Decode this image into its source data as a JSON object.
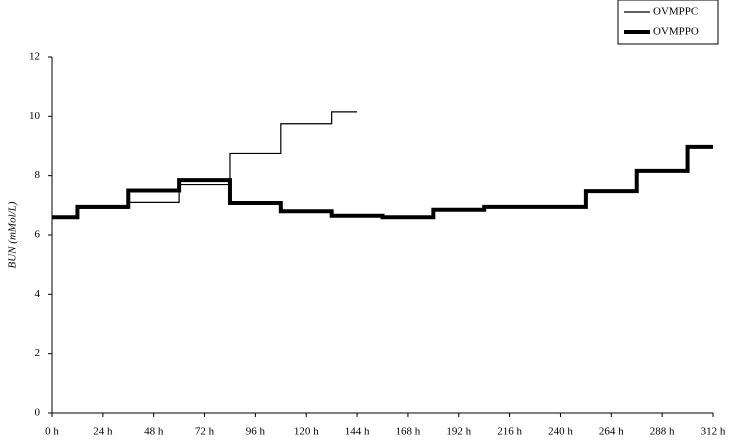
{
  "chart_data": {
    "type": "step",
    "y_label": "BUN (mMol/L)",
    "xlim": [
      0,
      312
    ],
    "xticks": [
      {
        "value": 0,
        "label": "0 h"
      },
      {
        "value": 24,
        "label": "24 h"
      },
      {
        "value": 48,
        "label": "48 h"
      },
      {
        "value": 72,
        "label": "72 h"
      },
      {
        "value": 96,
        "label": "96 h"
      },
      {
        "value": 120,
        "label": "120 h"
      },
      {
        "value": 144,
        "label": "144 h"
      },
      {
        "value": 168,
        "label": "168 h"
      },
      {
        "value": 192,
        "label": "192 h"
      },
      {
        "value": 216,
        "label": "216 h"
      },
      {
        "value": 240,
        "label": "240 h"
      },
      {
        "value": 264,
        "label": "264 h"
      },
      {
        "value": 288,
        "label": "288 h"
      },
      {
        "value": 312,
        "label": "312 h"
      }
    ],
    "ylim": [
      0,
      12
    ],
    "yticks": [
      0,
      2,
      4,
      6,
      8,
      10,
      12
    ],
    "grid": false,
    "legend": "top-right",
    "series": [
      {
        "name": "OVMPPC",
        "color": "#000000",
        "width": 1.2,
        "edges": [
          0,
          12,
          36,
          60,
          84,
          108,
          132,
          144
        ],
        "values": [
          6.6,
          6.9,
          7.1,
          7.7,
          8.75,
          9.75,
          10.15
        ]
      },
      {
        "name": "OVMPPO",
        "color": "#000000",
        "width": 4,
        "edges": [
          0,
          12,
          36,
          60,
          84,
          108,
          132,
          156,
          180,
          204,
          252,
          276,
          300,
          312
        ],
        "values": [
          6.6,
          6.95,
          7.5,
          7.85,
          7.08,
          6.8,
          6.65,
          6.6,
          6.85,
          6.95,
          7.48,
          8.16,
          8.97
        ]
      }
    ]
  }
}
